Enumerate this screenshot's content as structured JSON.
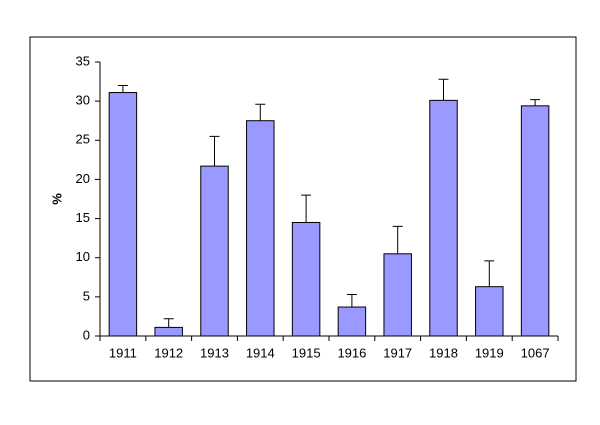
{
  "chart_data": {
    "type": "bar",
    "y_label": "%",
    "categories": [
      "1911",
      "1912",
      "1913",
      "1914",
      "1915",
      "1916",
      "1917",
      "1918",
      "1919",
      "1067"
    ],
    "values": [
      31.1,
      1.1,
      21.7,
      27.5,
      14.5,
      3.7,
      10.5,
      30.1,
      6.3,
      29.4
    ],
    "errors": [
      0.9,
      1.1,
      3.8,
      2.1,
      3.5,
      1.6,
      3.5,
      2.7,
      3.3,
      0.8
    ],
    "color": "#9999ff",
    "ylim": [
      0,
      35
    ],
    "yticks": [
      0,
      5,
      10,
      15,
      20,
      25,
      30,
      35
    ],
    "grid": false
  }
}
